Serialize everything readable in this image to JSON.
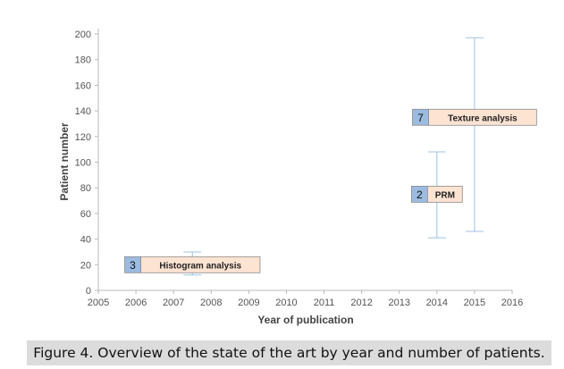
{
  "chart_data": {
    "type": "scatter",
    "xlabel": "Year of publication",
    "ylabel": "Patient number",
    "xlim": [
      2005,
      2016
    ],
    "ylim": [
      0,
      200
    ],
    "x_ticks": [
      2005,
      2006,
      2007,
      2008,
      2009,
      2010,
      2011,
      2012,
      2013,
      2014,
      2015,
      2016
    ],
    "y_ticks": [
      0,
      20,
      40,
      60,
      80,
      100,
      120,
      140,
      160,
      180,
      200
    ],
    "grid": false,
    "legend": "none",
    "error_bar_color": "#9cc3e6",
    "count_box_color": "#9bbbe0",
    "label_box_color": "#fde3d2",
    "points": [
      {
        "label": "Histogram analysis",
        "count": "3",
        "x": 2007.5,
        "y": 20,
        "low": 12,
        "high": 30
      },
      {
        "label": "PRM",
        "count": "2",
        "x": 2014,
        "y": 75,
        "low": 41,
        "high": 108
      },
      {
        "label": "Texture analysis",
        "count": "7",
        "x": 2015,
        "y": 135,
        "low": 46,
        "high": 197
      }
    ]
  },
  "caption": "Figure 4. Overview of the state of the art by year and number of patients."
}
